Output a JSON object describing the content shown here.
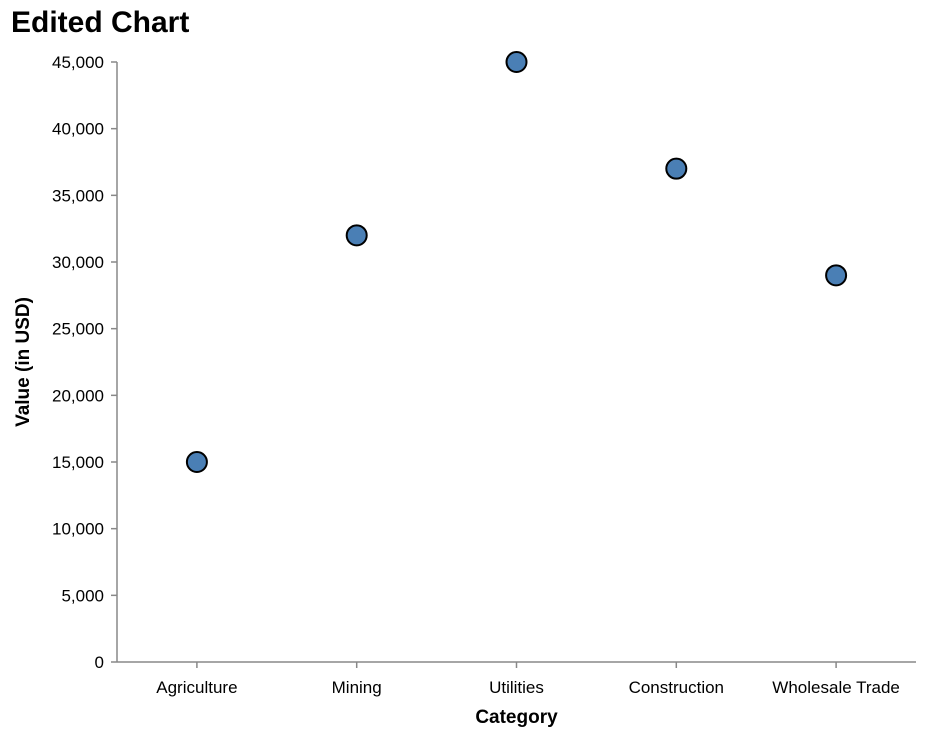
{
  "chart_data": {
    "type": "scatter",
    "title": "Edited Chart",
    "xlabel": "Category",
    "ylabel": "Value (in USD)",
    "categories": [
      "Agriculture",
      "Mining",
      "Utilities",
      "Construction",
      "Wholesale Trade"
    ],
    "values": [
      15000,
      32000,
      45000,
      37000,
      29000
    ],
    "ylim": [
      0,
      45000
    ],
    "yticks": [
      0,
      5000,
      10000,
      15000,
      20000,
      25000,
      30000,
      35000,
      40000,
      45000
    ],
    "grid": false,
    "point_color": "#4a7fb5",
    "point_stroke": "#000000"
  }
}
